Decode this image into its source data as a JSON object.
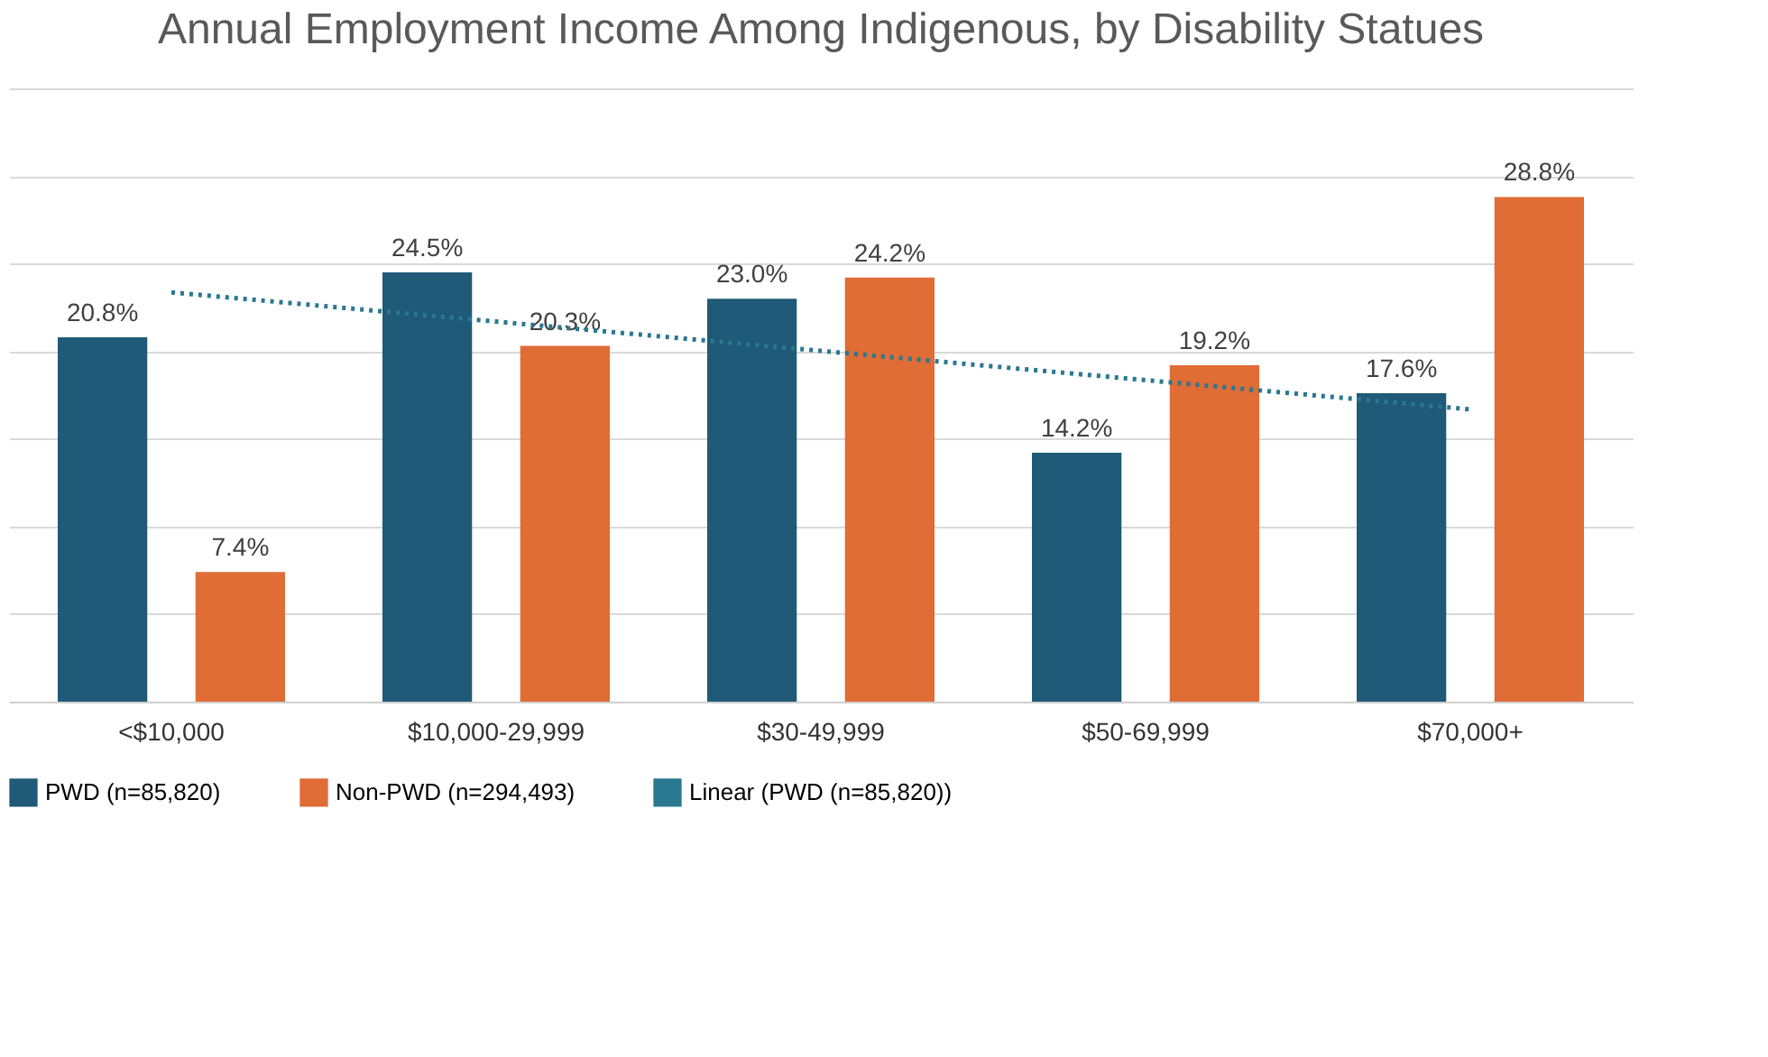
{
  "chart_data": {
    "type": "bar",
    "title": "Annual Employment Income Among Indigenous, by Disability Statues",
    "categories": [
      "<$10,000",
      "$10,000-29,999",
      "$30-49,999",
      "$50-69,999",
      "$70,000+"
    ],
    "series": [
      {
        "name": "PWD (n=85,820)",
        "color": "#1f5a78",
        "values": [
          20.8,
          24.5,
          23.0,
          14.2,
          17.6
        ],
        "value_labels": [
          "20.8%",
          "24.5%",
          "23.0%",
          "14.2%",
          "17.6%"
        ]
      },
      {
        "name": "Non-PWD (n=294,493)",
        "color": "#e06c36",
        "values": [
          7.4,
          20.3,
          24.2,
          19.2,
          28.8
        ],
        "value_labels": [
          "7.4%",
          "20.3%",
          "24.2%",
          "19.2%",
          "28.8%"
        ]
      },
      {
        "name": "Linear (PWD (n=85,820))",
        "type": "line",
        "line_style": "dotted",
        "color": "#2a7890",
        "values": [
          23.36,
          21.69,
          20.02,
          18.35,
          16.68
        ]
      }
    ],
    "ylim": [
      0,
      35
    ],
    "yticks": [
      {
        "value": 0,
        "label": null
      },
      {
        "value": 5,
        "label": null
      },
      {
        "value": 10,
        "label": null
      },
      {
        "value": 15,
        "label": null
      },
      {
        "value": 20,
        "label": null
      },
      {
        "value": 25,
        "label": null
      },
      {
        "value": 30,
        "label": null
      },
      {
        "value": 35,
        "label": null
      }
    ],
    "tick_labels": "x",
    "grid": "y",
    "legend": "bottom"
  }
}
